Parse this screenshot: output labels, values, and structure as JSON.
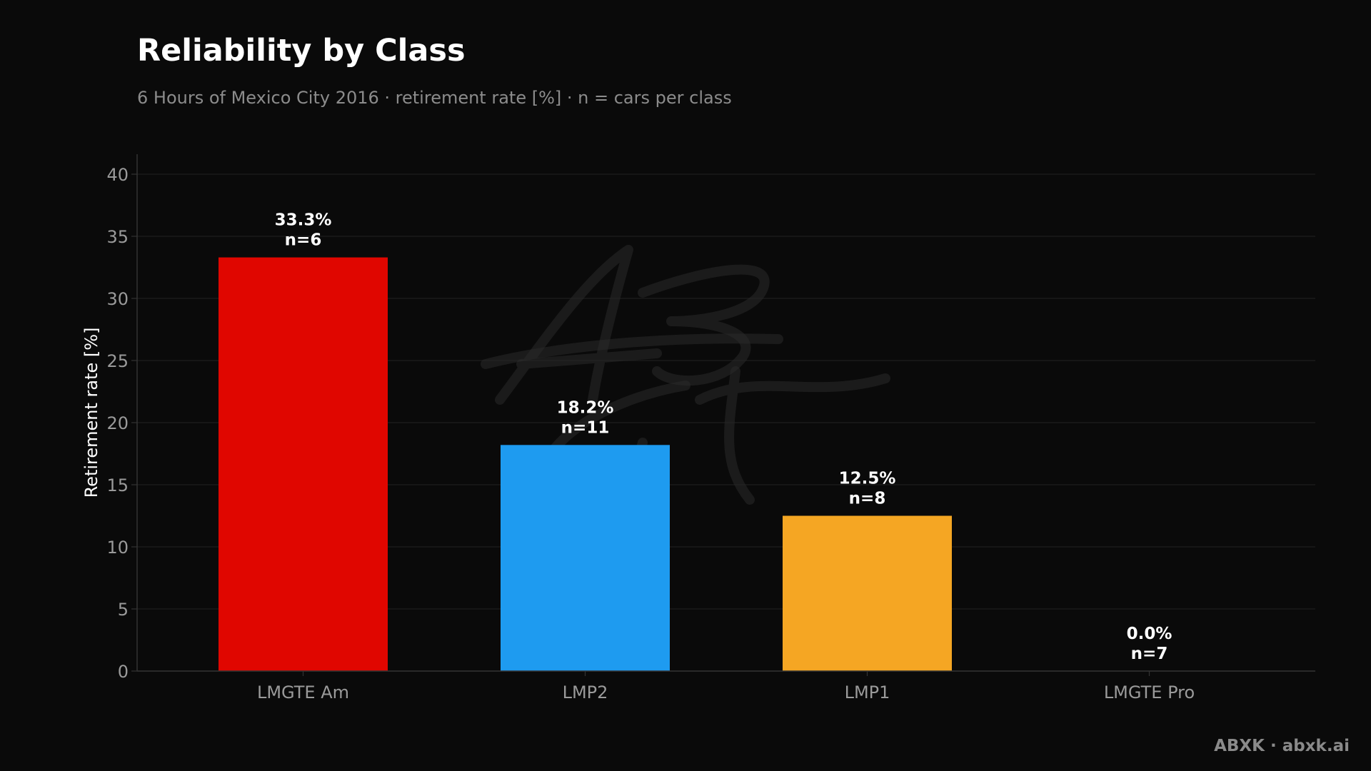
{
  "chart_data": {
    "type": "bar",
    "title": "Reliability by Class",
    "subtitle": "6 Hours of Mexico City 2016 · retirement rate [%] · n = cars per class",
    "ylabel": "Retirement rate [%]",
    "xlabel": "",
    "ylim": [
      0,
      40
    ],
    "yticks": [
      0,
      5,
      10,
      15,
      20,
      25,
      30,
      35,
      40
    ],
    "grid": true,
    "categories": [
      "LMGTE Am",
      "LMP2",
      "LMP1",
      "LMGTE Pro"
    ],
    "values": [
      33.3,
      18.2,
      12.5,
      0.0
    ],
    "value_labels": [
      "33.3%",
      "18.2%",
      "12.5%",
      "0.0%"
    ],
    "n_labels": [
      "n=6",
      "n=11",
      "n=8",
      "n=7"
    ],
    "colors": [
      "#e00600",
      "#1e9bf0",
      "#f5a623",
      "#888888"
    ]
  },
  "footer": {
    "credit": "ABXK · abxk.ai"
  },
  "watermark": {
    "icon": "abxk-signature-watermark"
  },
  "theme": {
    "background": "#0a0a0a",
    "grid": "#1e1e1e",
    "axis": "#333333"
  }
}
